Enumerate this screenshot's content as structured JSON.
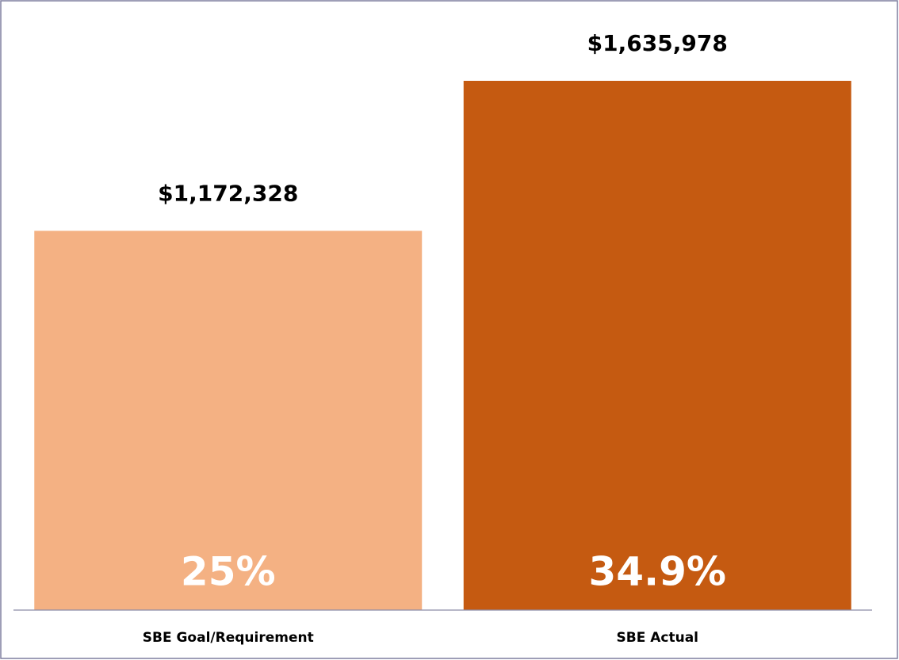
{
  "chart_data": {
    "type": "bar",
    "categories": [
      "SBE Goal/Requirement",
      "SBE Actual"
    ],
    "values": [
      1172328,
      1635978
    ],
    "value_labels": [
      "$1,172,328",
      "$1,635,978"
    ],
    "percent_values": [
      25,
      34.9
    ],
    "percent_labels": [
      "25%",
      "34.9%"
    ],
    "colors": [
      "#f4b183",
      "#c55a11"
    ]
  }
}
